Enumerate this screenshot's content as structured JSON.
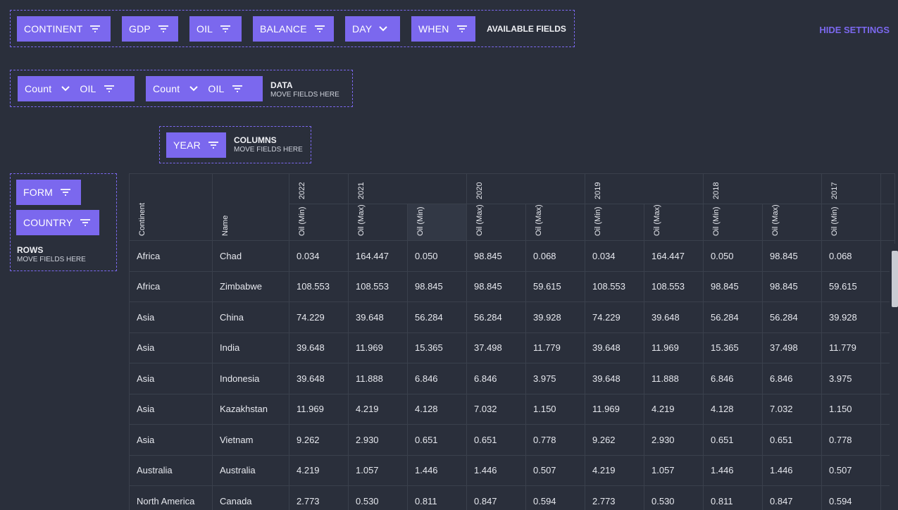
{
  "available_fields": {
    "chips": [
      {
        "label": "CONTINENT",
        "icon": "filter-icon"
      },
      {
        "label": "GDP",
        "icon": "filter-icon"
      },
      {
        "label": "OIL",
        "icon": "filter-icon"
      },
      {
        "label": "BALANCE",
        "icon": "filter-icon"
      },
      {
        "label": "DAY",
        "icon": "chevron-down-icon"
      },
      {
        "label": "WHEN",
        "icon": "filter-icon"
      }
    ],
    "label": "AVAILABLE FIELDS"
  },
  "hide_settings": "HIDE SETTINGS",
  "data_zone": {
    "chips": [
      {
        "agg": "Count",
        "field": "OIL"
      },
      {
        "agg": "Count",
        "field": "OIL"
      }
    ],
    "label": "DATA",
    "sub": "MOVE FIELDS HERE"
  },
  "columns_zone": {
    "chips": [
      {
        "label": "YEAR"
      }
    ],
    "label": "COLUMNS",
    "sub": "MOVE FIELDS HERE"
  },
  "rows_zone": {
    "chips": [
      {
        "label": "FORM"
      },
      {
        "label": "COUNTRY"
      }
    ],
    "label": "ROWS",
    "sub": "MOVE FIELDS HERE"
  },
  "grid": {
    "row_headers": [
      "Continent",
      "Name"
    ],
    "years": [
      "2022",
      "2021",
      "2020",
      "2019",
      "2018",
      "2017"
    ],
    "measures": [
      "Oil (Min)",
      "Oil (Max)",
      "Oil (Min)",
      "Oil (Max)",
      "Oil (Max)",
      "Oil (Min)",
      "Oil (Max)",
      "Oil (Min)",
      "Oil (Max)",
      "Oil (Min)"
    ],
    "rows": [
      [
        "Africa",
        "Chad",
        "0.034",
        "164.447",
        "0.050",
        "98.845",
        "0.068",
        "0.034",
        "164.447",
        "0.050",
        "98.845",
        "0.068"
      ],
      [
        "Africa",
        "Zimbabwe",
        "108.553",
        "108.553",
        "98.845",
        "98.845",
        "59.615",
        "108.553",
        "108.553",
        "98.845",
        "98.845",
        "59.615"
      ],
      [
        "Asia",
        "China",
        "74.229",
        "39.648",
        "56.284",
        "56.284",
        "39.928",
        "74.229",
        "39.648",
        "56.284",
        "56.284",
        "39.928"
      ],
      [
        "Asia",
        "India",
        "39.648",
        "11.969",
        "15.365",
        "37.498",
        "11.779",
        "39.648",
        "11.969",
        "15.365",
        "37.498",
        "11.779"
      ],
      [
        "Asia",
        "Indonesia",
        "39.648",
        "11.888",
        "6.846",
        "6.846",
        "3.975",
        "39.648",
        "11.888",
        "6.846",
        "6.846",
        "3.975"
      ],
      [
        "Asia",
        "Kazakhstan",
        "11.969",
        "4.219",
        "4.128",
        "7.032",
        "1.150",
        "11.969",
        "4.219",
        "4.128",
        "7.032",
        "1.150"
      ],
      [
        "Asia",
        "Vietnam",
        "9.262",
        "2.930",
        "0.651",
        "0.651",
        "0.778",
        "9.262",
        "2.930",
        "0.651",
        "0.651",
        "0.778"
      ],
      [
        "Australia",
        "Australia",
        "4.219",
        "1.057",
        "1.446",
        "1.446",
        "0.507",
        "4.219",
        "1.057",
        "1.446",
        "1.446",
        "0.507"
      ],
      [
        "North America",
        "Canada",
        "2.773",
        "0.530",
        "0.811",
        "0.847",
        "0.594",
        "2.773",
        "0.530",
        "0.811",
        "0.847",
        "0.594"
      ]
    ]
  },
  "colors": {
    "accent": "#7b68ee",
    "background": "#2a2f3b",
    "grid_line": "#3a404c"
  }
}
